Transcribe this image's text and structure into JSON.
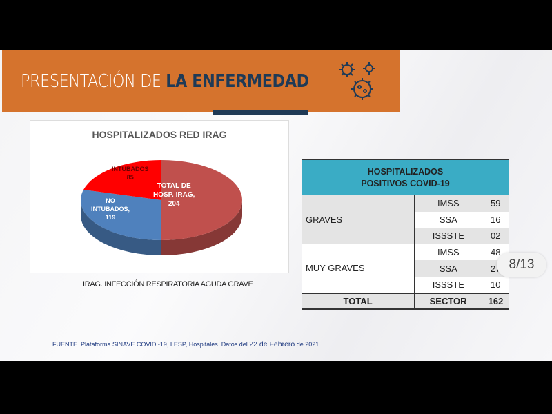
{
  "header": {
    "title_light": "PRESENTACIÓN DE",
    "title_bold": "LA ENFERMEDAD",
    "icon": "virus-icon",
    "color": "#d5732d"
  },
  "chart_data": {
    "type": "pie",
    "title": "HOSPITALIZADOS RED IRAG",
    "slices": [
      {
        "label_lines": [
          "TOTAL DE",
          "HOSP. IRAG,",
          "204"
        ],
        "value": 204,
        "color": "#c0504d"
      },
      {
        "label_lines": [
          "NO",
          "INTUBADOS,",
          "119"
        ],
        "value": 119,
        "color": "#4f81bd"
      },
      {
        "label_lines": [
          "INTUBADOS",
          "85"
        ],
        "value": 85,
        "color": "#ff0000"
      }
    ]
  },
  "chart_note": "IRAG. INFECCIÓN RESPIRATORIA AGUDA GRAVE",
  "table": {
    "header_line1": "HOSPITALIZADOS",
    "header_line2": "POSITIVOS COVID-19",
    "groups": [
      {
        "name": "GRAVES",
        "rows": [
          {
            "inst": "IMSS",
            "value": "59"
          },
          {
            "inst": "SSA",
            "value": "16"
          },
          {
            "inst": "ISSSTE",
            "value": "02"
          }
        ]
      },
      {
        "name": "MUY GRAVES",
        "rows": [
          {
            "inst": "IMSS",
            "value": "48"
          },
          {
            "inst": "SSA",
            "value": "27"
          },
          {
            "inst": "ISSSTE",
            "value": "10"
          }
        ]
      }
    ],
    "total": {
      "label": "TOTAL",
      "sector": "SECTOR",
      "value": "162"
    }
  },
  "page_indicator": "8/13",
  "source": {
    "pre": "FUENTE. Plataforma SINAVE COVID -19, LESP, Hospitales. Datos del",
    "big": "22 de Febrero",
    "post": "de 2021"
  }
}
